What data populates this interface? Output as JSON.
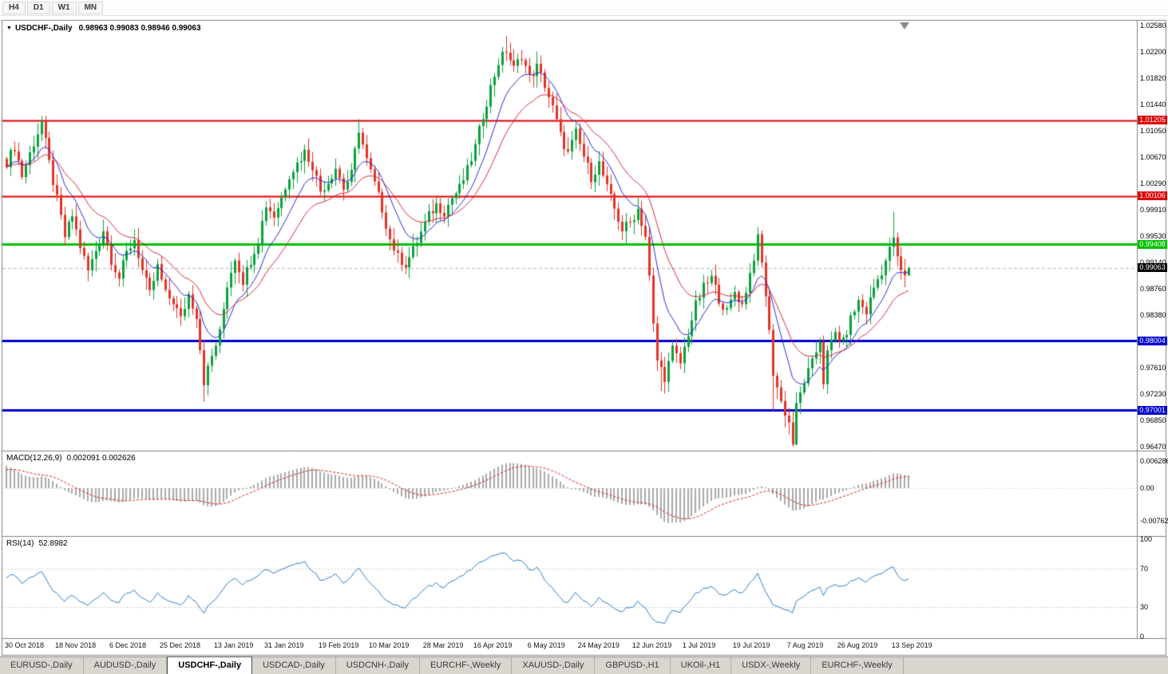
{
  "toolbar": {
    "timeframes": [
      "H4",
      "D1",
      "W1",
      "MN"
    ]
  },
  "icons": {
    "title_marker": "▼"
  },
  "chart": {
    "title": "USDCHF-,Daily",
    "ohlc": "0.98963 0.99083 0.98946 0.99063"
  },
  "macd": {
    "title": "MACD(12,26,9)",
    "values": "0.002091 0.002626",
    "axis": [
      "0.006286",
      "0.00",
      "-0.00762"
    ]
  },
  "rsi": {
    "title": "RSI(14)",
    "value": "52.8982",
    "axis": [
      "100",
      "70",
      "30",
      "0"
    ],
    "levels": [
      70,
      30
    ]
  },
  "tabs": {
    "items": [
      {
        "label": "EURUSD-,Daily",
        "active": false
      },
      {
        "label": "AUDUSD-,Daily",
        "active": false
      },
      {
        "label": "USDCHF-,Daily",
        "active": true
      },
      {
        "label": "USDCAD-,Daily",
        "active": false
      },
      {
        "label": "USDCNH-,Daily",
        "active": false
      },
      {
        "label": "EURCHF-,Weekly",
        "active": false
      },
      {
        "label": "XAUUSD-,Daily",
        "active": false
      },
      {
        "label": "GBPUSD-,H1",
        "active": false
      },
      {
        "label": "UKOil-,H1",
        "active": false
      },
      {
        "label": "USDX-,Weekly",
        "active": false
      },
      {
        "label": "EURCHF-,Weekly",
        "active": false
      }
    ]
  },
  "chart_data": {
    "type": "candlestick",
    "symbol": "USDCHF",
    "period": "Daily",
    "bars": 234,
    "open": 0.98963,
    "high": 0.99083,
    "low": 0.98946,
    "close": 0.99063,
    "colors": {
      "up": "#0aa13c",
      "down": "#e23428",
      "ma_fast": "#2a2ad2",
      "ma_slow": "#d22c3c",
      "macd_hist": "#a9a9a9",
      "macd_signal": "#d22020",
      "rsi": "#2d7cc4"
    },
    "ma_periods": {
      "fast": 10,
      "slow": 21
    },
    "y_ticks": [
      "1.02580",
      "1.02200",
      "1.01820",
      "1.01440",
      "1.01050",
      "1.00670",
      "1.00290",
      "0.99910",
      "0.99530",
      "0.99140",
      "0.98760",
      "0.98380",
      "0.98000",
      "0.97610",
      "0.97230",
      "0.96850",
      "0.96470"
    ],
    "h_lines": [
      {
        "price": 1.01205,
        "label": "1.01205",
        "color": "#dd0000",
        "width": 2
      },
      {
        "price": 1.00106,
        "label": "1.00106",
        "color": "#dd0000",
        "width": 2
      },
      {
        "price": 0.99408,
        "label": "0.99408",
        "color": "#00c000",
        "width": 3
      },
      {
        "price": 0.98004,
        "label": "0.98004",
        "color": "#0000cc",
        "width": 3
      },
      {
        "price": 0.97001,
        "label": "0.97001",
        "color": "#0000cc",
        "width": 3
      }
    ],
    "current_price": {
      "value": 0.99063,
      "label": "0.99063"
    },
    "x_labels": [
      {
        "bar": 0,
        "label": "30 Oct 2018"
      },
      {
        "bar": 13,
        "label": "18 Nov 2018"
      },
      {
        "bar": 27,
        "label": "6 Dec 2018"
      },
      {
        "bar": 40,
        "label": "25 Dec 2018"
      },
      {
        "bar": 54,
        "label": "13 Jan 2019"
      },
      {
        "bar": 67,
        "label": "31 Jan 2019"
      },
      {
        "bar": 81,
        "label": "19 Feb 2019"
      },
      {
        "bar": 94,
        "label": "10 Mar 2019"
      },
      {
        "bar": 108,
        "label": "28 Mar 2019"
      },
      {
        "bar": 121,
        "label": "16 Apr 2019"
      },
      {
        "bar": 135,
        "label": "6 May 2019"
      },
      {
        "bar": 148,
        "label": "24 May 2019"
      },
      {
        "bar": 162,
        "label": "12 Jun 2019"
      },
      {
        "bar": 175,
        "label": "1 Jul 2019"
      },
      {
        "bar": 188,
        "label": "19 Jul 2019"
      },
      {
        "bar": 202,
        "label": "7 Aug 2019"
      },
      {
        "bar": 215,
        "label": "26 Aug 2019"
      },
      {
        "bar": 229,
        "label": "13 Sep 2019"
      }
    ],
    "waypoints": [
      [
        0,
        1.006
      ],
      [
        2,
        1.0082
      ],
      [
        4,
        1.004
      ],
      [
        6,
        1.0072
      ],
      [
        9,
        1.0118
      ],
      [
        11,
        1.0058
      ],
      [
        13,
        1.0005
      ],
      [
        15,
        0.9952
      ],
      [
        17,
        0.9982
      ],
      [
        19,
        0.9938
      ],
      [
        21,
        0.9902
      ],
      [
        23,
        0.9932
      ],
      [
        25,
        0.9962
      ],
      [
        27,
        0.9918
      ],
      [
        29,
        0.9892
      ],
      [
        31,
        0.9928
      ],
      [
        33,
        0.9948
      ],
      [
        35,
        0.9902
      ],
      [
        37,
        0.9868
      ],
      [
        39,
        0.9908
      ],
      [
        41,
        0.9868
      ],
      [
        43,
        0.9858
      ],
      [
        45,
        0.9832
      ],
      [
        47,
        0.9868
      ],
      [
        49,
        0.9838
      ],
      [
        51,
        0.9742
      ],
      [
        53,
        0.9778
      ],
      [
        55,
        0.9812
      ],
      [
        57,
        0.9882
      ],
      [
        59,
        0.9922
      ],
      [
        61,
        0.9888
      ],
      [
        63,
        0.9918
      ],
      [
        65,
        0.9948
      ],
      [
        67,
        0.9998
      ],
      [
        69,
        0.9982
      ],
      [
        71,
        1.0008
      ],
      [
        73,
        1.0042
      ],
      [
        75,
        1.0058
      ],
      [
        77,
        1.0075
      ],
      [
        79,
        1.0055
      ],
      [
        81,
        1.0018
      ],
      [
        83,
        1.0032
      ],
      [
        85,
        1.0052
      ],
      [
        87,
        1.0022
      ],
      [
        89,
        1.0042
      ],
      [
        91,
        1.0108
      ],
      [
        93,
        1.0062
      ],
      [
        95,
        1.0028
      ],
      [
        97,
        0.9992
      ],
      [
        99,
        0.9948
      ],
      [
        101,
        0.9922
      ],
      [
        103,
        0.9912
      ],
      [
        105,
        0.9932
      ],
      [
        107,
        0.9958
      ],
      [
        109,
        0.9982
      ],
      [
        111,
        0.9998
      ],
      [
        113,
        0.9988
      ],
      [
        115,
        1.0008
      ],
      [
        117,
        1.0022
      ],
      [
        119,
        1.0048
      ],
      [
        121,
        1.0082
      ],
      [
        123,
        1.0128
      ],
      [
        125,
        1.0168
      ],
      [
        127,
        1.0205
      ],
      [
        129,
        1.0222
      ],
      [
        131,
        1.0195
      ],
      [
        133,
        1.0215
      ],
      [
        135,
        1.0182
      ],
      [
        137,
        1.0198
      ],
      [
        139,
        1.0172
      ],
      [
        141,
        1.0138
      ],
      [
        143,
        1.0098
      ],
      [
        145,
        1.0072
      ],
      [
        147,
        1.0102
      ],
      [
        149,
        1.0068
      ],
      [
        151,
        1.0038
      ],
      [
        153,
        1.0058
      ],
      [
        155,
        1.0022
      ],
      [
        157,
        0.9992
      ],
      [
        159,
        0.9962
      ],
      [
        161,
        0.9972
      ],
      [
        163,
        0.9992
      ],
      [
        165,
        0.9952
      ],
      [
        166,
        0.9892
      ],
      [
        167,
        0.9822
      ],
      [
        168,
        0.9772
      ],
      [
        170,
        0.9748
      ],
      [
        172,
        0.9788
      ],
      [
        174,
        0.9768
      ],
      [
        176,
        0.9812
      ],
      [
        178,
        0.9852
      ],
      [
        180,
        0.9878
      ],
      [
        182,
        0.9892
      ],
      [
        184,
        0.9862
      ],
      [
        186,
        0.9842
      ],
      [
        188,
        0.9872
      ],
      [
        190,
        0.9852
      ],
      [
        192,
        0.9898
      ],
      [
        194,
        0.9948
      ],
      [
        195,
        0.9912
      ],
      [
        196,
        0.9868
      ],
      [
        197,
        0.9812
      ],
      [
        198,
        0.9755
      ],
      [
        200,
        0.9712
      ],
      [
        202,
        0.9682
      ],
      [
        203,
        0.9652
      ],
      [
        204,
        0.9705
      ],
      [
        206,
        0.9742
      ],
      [
        208,
        0.9768
      ],
      [
        210,
        0.9802
      ],
      [
        211,
        0.9742
      ],
      [
        212,
        0.9782
      ],
      [
        214,
        0.9812
      ],
      [
        216,
        0.9798
      ],
      [
        218,
        0.9832
      ],
      [
        220,
        0.9858
      ],
      [
        222,
        0.9842
      ],
      [
        224,
        0.9878
      ],
      [
        226,
        0.9902
      ],
      [
        228,
        0.9932
      ],
      [
        229,
        0.9952
      ],
      [
        230,
        0.9918
      ],
      [
        231,
        0.9902
      ],
      [
        232,
        0.9892
      ],
      [
        233,
        0.99063
      ]
    ],
    "extremes": {
      "9": {
        "h": 1.0127
      },
      "51": {
        "l": 0.9712
      },
      "91": {
        "h": 1.0122
      },
      "129": {
        "h": 1.0243
      },
      "169": {
        "l": 0.9728
      },
      "198": {
        "l": 0.9699
      },
      "203": {
        "l": 0.9647
      },
      "229": {
        "h": 0.9988
      },
      "233": {
        "h": 0.99083,
        "l": 0.98946
      }
    },
    "indicators": {
      "macd": {
        "fast": 12,
        "slow": 26,
        "signal": 9,
        "display": "0.002091 0.002626"
      },
      "rsi": {
        "period": 14,
        "display": "52.8982"
      }
    }
  }
}
